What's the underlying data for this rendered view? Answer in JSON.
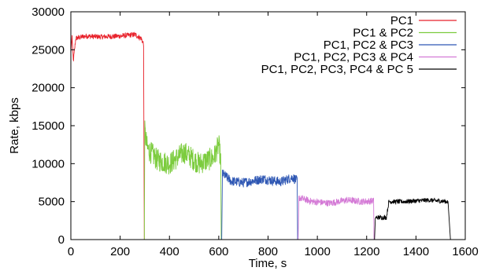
{
  "chart_data": {
    "type": "line",
    "title": "",
    "xlabel": "Time, s",
    "ylabel": "Rate, kbps",
    "xlim": [
      0,
      1600
    ],
    "ylim": [
      0,
      30000
    ],
    "xticks": [
      0,
      200,
      400,
      600,
      800,
      1000,
      1200,
      1400,
      1600
    ],
    "yticks": [
      0,
      5000,
      10000,
      15000,
      20000,
      25000,
      30000
    ],
    "grid": false,
    "legend_position": "top-right",
    "series": [
      {
        "name": "PC1",
        "color": "#e8222b",
        "t_start": 0,
        "t_end": 298,
        "mean": 26700,
        "jitter": 350,
        "values": [
          [
            0,
            24500
          ],
          [
            5,
            26800
          ],
          [
            10,
            23500
          ],
          [
            20,
            26500
          ],
          [
            60,
            26800
          ],
          [
            120,
            26700
          ],
          [
            200,
            26800
          ],
          [
            260,
            27000
          ],
          [
            285,
            26500
          ],
          [
            295,
            25800
          ],
          [
            298,
            0
          ]
        ]
      },
      {
        "name": "PC1 & PC2",
        "color": "#7ccc3e",
        "t_start": 298,
        "t_end": 612,
        "mean": 10500,
        "jitter": 1500,
        "values": [
          [
            298,
            0
          ],
          [
            300,
            14200
          ],
          [
            310,
            12000
          ],
          [
            350,
            10500
          ],
          [
            400,
            10000
          ],
          [
            460,
            11500
          ],
          [
            520,
            10000
          ],
          [
            580,
            10800
          ],
          [
            600,
            12500
          ],
          [
            608,
            10500
          ],
          [
            610,
            0
          ]
        ]
      },
      {
        "name": "PC1, PC2 & PC3",
        "color": "#2d56b3",
        "t_start": 612,
        "t_end": 922,
        "mean": 7700,
        "jitter": 650,
        "values": [
          [
            612,
            0
          ],
          [
            615,
            8700
          ],
          [
            650,
            7700
          ],
          [
            700,
            7500
          ],
          [
            780,
            8000
          ],
          [
            850,
            7600
          ],
          [
            900,
            8200
          ],
          [
            918,
            7700
          ],
          [
            920,
            0
          ]
        ]
      },
      {
        "name": "PC1, PC2, PC3 & PC4",
        "color": "#d47ad6",
        "t_start": 922,
        "t_end": 1232,
        "mean": 5000,
        "jitter": 450,
        "values": [
          [
            922,
            0
          ],
          [
            925,
            5500
          ],
          [
            980,
            5000
          ],
          [
            1050,
            4800
          ],
          [
            1120,
            5200
          ],
          [
            1180,
            5000
          ],
          [
            1228,
            5100
          ],
          [
            1230,
            0
          ]
        ]
      },
      {
        "name": "PC1, PC2, PC3, PC4 & PC 5",
        "color": "#000000",
        "t_start": 1232,
        "t_end": 1540,
        "mean": 5000,
        "jitter": 300,
        "values": [
          [
            1232,
            0
          ],
          [
            1235,
            2900
          ],
          [
            1280,
            2900
          ],
          [
            1290,
            5000
          ],
          [
            1350,
            5000
          ],
          [
            1450,
            5200
          ],
          [
            1530,
            5000
          ],
          [
            1540,
            0
          ]
        ]
      }
    ]
  }
}
